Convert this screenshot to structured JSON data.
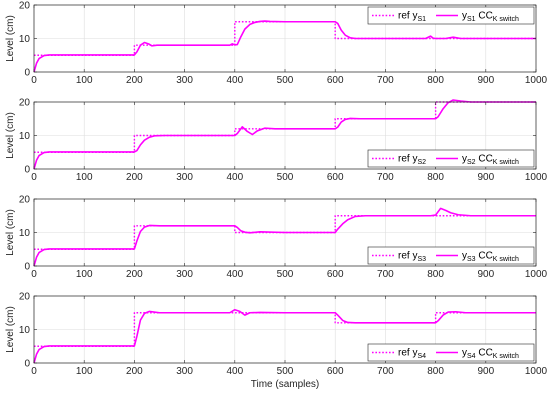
{
  "chart_data": [
    {
      "type": "line",
      "ylabel": "Level (cm)",
      "xlim": [
        0,
        1000
      ],
      "ylim": [
        0,
        20
      ],
      "xticks": [
        0,
        100,
        200,
        300,
        400,
        500,
        600,
        700,
        800,
        900,
        1000
      ],
      "yticks": [
        0,
        10,
        20
      ],
      "grid": true,
      "legend_position": "top-right",
      "series": [
        {
          "name": "ref y_S1",
          "legend_main": "ref y",
          "legend_sub": "S1",
          "style": "dotted",
          "x": [
            0,
            200,
            200,
            400,
            400,
            600,
            600,
            1000
          ],
          "y": [
            5,
            5,
            8,
            8,
            15,
            15,
            10,
            10
          ]
        },
        {
          "name": "y_S1 CC_K switch",
          "legend_main": "y",
          "legend_sub": "S1",
          "legend_main2": " CC",
          "legend_sub2": "K switch",
          "style": "solid",
          "x": [
            0,
            5,
            10,
            20,
            30,
            50,
            200,
            205,
            212,
            220,
            228,
            235,
            245,
            260,
            300,
            390,
            395,
            400,
            405,
            412,
            420,
            430,
            440,
            450,
            460,
            470,
            500,
            600,
            605,
            612,
            620,
            630,
            640,
            700,
            780,
            790,
            795,
            800,
            820,
            835,
            850,
            870,
            1000
          ],
          "y": [
            0,
            2.6,
            4.0,
            4.9,
            5.1,
            5.1,
            5.1,
            6.0,
            8.0,
            8.8,
            8.4,
            7.8,
            8.0,
            8.0,
            8.0,
            8.0,
            8.4,
            8.1,
            8.2,
            10.5,
            12.8,
            14.2,
            14.8,
            15.1,
            15.2,
            15.1,
            15.0,
            15.0,
            14.5,
            12.5,
            11.0,
            10.2,
            10.0,
            10.0,
            10.0,
            10.7,
            10.1,
            10.0,
            10.0,
            10.4,
            10.0,
            10.0,
            10.0
          ]
        }
      ]
    },
    {
      "type": "line",
      "ylabel": "Level (cm)",
      "xlim": [
        0,
        1000
      ],
      "ylim": [
        0,
        20
      ],
      "xticks": [
        0,
        100,
        200,
        300,
        400,
        500,
        600,
        700,
        800,
        900,
        1000
      ],
      "yticks": [
        0,
        10,
        20
      ],
      "grid": true,
      "legend_position": "bottom-right",
      "series": [
        {
          "name": "ref y_S2",
          "legend_main": "ref y",
          "legend_sub": "S2",
          "style": "dotted",
          "x": [
            0,
            200,
            200,
            400,
            400,
            600,
            600,
            800,
            800,
            1000
          ],
          "y": [
            5,
            5,
            10,
            10,
            12,
            12,
            15,
            15,
            20,
            20
          ]
        },
        {
          "name": "y_S2 CC_K switch",
          "legend_main": "y",
          "legend_sub": "S2",
          "legend_main2": " CC",
          "legend_sub2": "K switch",
          "style": "solid",
          "x": [
            0,
            5,
            10,
            20,
            30,
            50,
            200,
            205,
            212,
            220,
            230,
            240,
            260,
            300,
            400,
            405,
            415,
            425,
            435,
            445,
            460,
            480,
            600,
            605,
            612,
            620,
            630,
            650,
            700,
            800,
            805,
            815,
            825,
            835,
            850,
            870,
            1000
          ],
          "y": [
            0,
            2.6,
            4.0,
            4.9,
            5.1,
            5.1,
            5.1,
            5.5,
            7.2,
            8.6,
            9.5,
            9.9,
            10.0,
            10.0,
            10.0,
            10.6,
            12.6,
            11.2,
            10.3,
            11.4,
            12.2,
            12.0,
            12.0,
            12.5,
            14.0,
            14.8,
            15.1,
            15.0,
            15.0,
            15.0,
            15.6,
            18.0,
            19.8,
            20.6,
            20.3,
            20.0,
            20.0
          ]
        }
      ]
    },
    {
      "type": "line",
      "ylabel": "Level (cm)",
      "xlim": [
        0,
        1000
      ],
      "ylim": [
        0,
        20
      ],
      "xticks": [
        0,
        100,
        200,
        300,
        400,
        500,
        600,
        700,
        800,
        900,
        1000
      ],
      "yticks": [
        0,
        10,
        20
      ],
      "grid": true,
      "legend_position": "bottom-right",
      "series": [
        {
          "name": "ref y_S3",
          "legend_main": "ref y",
          "legend_sub": "S3",
          "style": "dotted",
          "x": [
            0,
            200,
            200,
            400,
            400,
            600,
            600,
            1000
          ],
          "y": [
            5,
            5,
            12,
            12,
            10,
            10,
            15,
            15
          ]
        },
        {
          "name": "y_S3 CC_K switch",
          "legend_main": "y",
          "legend_sub": "S3",
          "legend_main2": " CC",
          "legend_sub2": "K switch",
          "style": "solid",
          "x": [
            0,
            5,
            10,
            20,
            30,
            50,
            200,
            205,
            212,
            220,
            230,
            250,
            300,
            400,
            405,
            412,
            420,
            430,
            450,
            500,
            600,
            605,
            615,
            625,
            640,
            660,
            700,
            790,
            800,
            810,
            820,
            830,
            845,
            870,
            1000
          ],
          "y": [
            0,
            2.6,
            4.0,
            4.9,
            5.1,
            5.1,
            5.1,
            7.5,
            10.3,
            11.6,
            12.1,
            12.0,
            12.0,
            12.0,
            11.5,
            10.5,
            10.1,
            9.9,
            10.2,
            10.0,
            10.0,
            11.0,
            12.6,
            13.8,
            14.8,
            15.0,
            15.0,
            15.0,
            15.2,
            17.2,
            16.6,
            15.9,
            15.3,
            15.0,
            15.0
          ]
        }
      ]
    },
    {
      "type": "line",
      "ylabel": "Level (cm)",
      "xlabel": "Time (samples)",
      "xlim": [
        0,
        1000
      ],
      "ylim": [
        0,
        20
      ],
      "xticks": [
        0,
        100,
        200,
        300,
        400,
        500,
        600,
        700,
        800,
        900,
        1000
      ],
      "yticks": [
        0,
        10,
        20
      ],
      "grid": true,
      "legend_position": "bottom-right",
      "series": [
        {
          "name": "ref y_S4",
          "legend_main": "ref y",
          "legend_sub": "S4",
          "style": "dotted",
          "x": [
            0,
            200,
            200,
            400,
            400,
            600,
            600,
            800,
            800,
            1000
          ],
          "y": [
            5,
            5,
            15,
            15,
            15,
            15,
            12,
            12,
            15,
            15
          ]
        },
        {
          "name": "y_S4 CC_K switch",
          "legend_main": "y",
          "legend_sub": "S4",
          "legend_main2": " CC",
          "legend_sub2": "K switch",
          "style": "solid",
          "x": [
            0,
            5,
            10,
            20,
            30,
            50,
            200,
            205,
            212,
            220,
            230,
            250,
            300,
            390,
            400,
            410,
            420,
            430,
            450,
            500,
            600,
            605,
            615,
            625,
            640,
            660,
            700,
            800,
            805,
            815,
            825,
            840,
            860,
            1000
          ],
          "y": [
            0,
            2.6,
            4.0,
            4.9,
            5.1,
            5.1,
            5.1,
            8.0,
            12.8,
            14.8,
            15.4,
            15.0,
            15.0,
            15.0,
            15.9,
            15.4,
            14.3,
            15.0,
            15.1,
            15.0,
            15.0,
            14.3,
            12.7,
            12.1,
            12.0,
            12.0,
            12.0,
            12.0,
            12.6,
            14.3,
            15.2,
            15.3,
            15.0,
            15.0
          ]
        }
      ]
    }
  ]
}
